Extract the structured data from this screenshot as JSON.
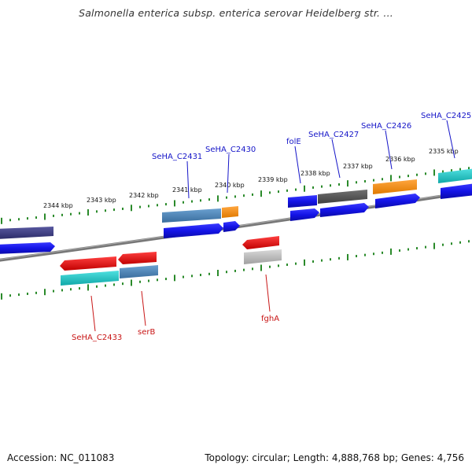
{
  "title": "Salmonella enterica subsp. enterica serovar Heidelberg str. ...",
  "accession": "Accession: NC_011083",
  "summary": "Topology: circular; Length: 4,888,768 bp; Genes: 4,756",
  "kbp_labels": [
    "2344 kbp",
    "2343 kbp",
    "2342 kbp",
    "2341 kbp",
    "2340 kbp",
    "2339 kbp",
    "2338 kbp",
    "2337 kbp",
    "2336 kbp",
    "2335 kbp"
  ],
  "top_gene_labels": [
    "SeHA_C2431",
    "SeHA_C2430",
    "folE",
    "SeHA_C2427",
    "SeHA_C2426",
    "SeHA_C2425"
  ],
  "bottom_gene_labels": [
    "SeHA_C2433",
    "serB",
    "fghA"
  ],
  "colors": {
    "blue_gene": "#1414e6",
    "cds_steelblue": "#4682b4",
    "cds_orange": "#ff8c00",
    "cds_red": "#e01010",
    "cds_cyan": "#10c8c8",
    "cds_gray": "#505050",
    "cds_lightgray": "#b4b4b4",
    "cds_darkslate": "#3c3c80",
    "tick_green": "#2a8a2a",
    "backbone": "#777777"
  }
}
